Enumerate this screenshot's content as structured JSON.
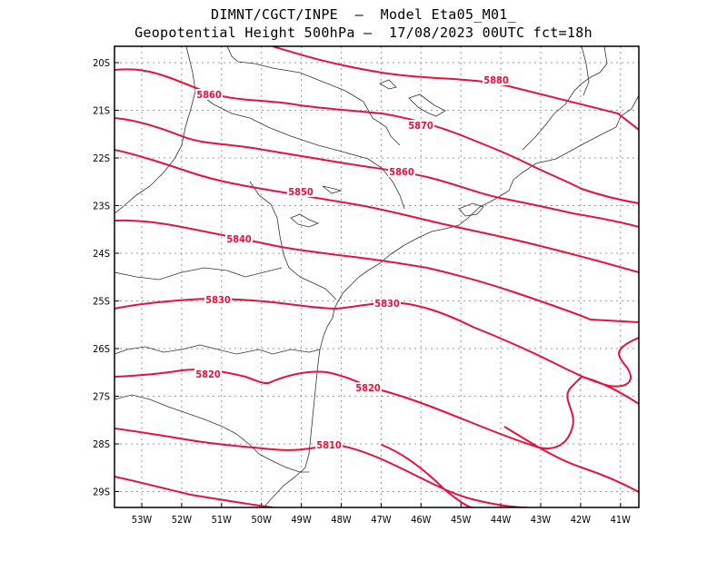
{
  "header": {
    "line1": "DIMNT/CGCT/INPE  –  Model Eta05_M01_",
    "line2": "Geopotential Height 500hPa –  17/08/2023 00UTC fct=18h"
  },
  "map": {
    "lat_labels": [
      "20S",
      "21S",
      "22S",
      "23S",
      "24S",
      "25S",
      "26S",
      "27S",
      "28S",
      "29S"
    ],
    "lon_labels": [
      "53W",
      "52W",
      "51W",
      "50W",
      "49W",
      "48W",
      "47W",
      "46W",
      "45W",
      "44W",
      "43W",
      "42W",
      "41W"
    ],
    "contour_color": "#e8113c",
    "contour_labels": [
      "5880",
      "5870",
      "5860",
      "5860",
      "5850",
      "5840",
      "5830",
      "5830",
      "5820",
      "5820",
      "5810"
    ]
  }
}
